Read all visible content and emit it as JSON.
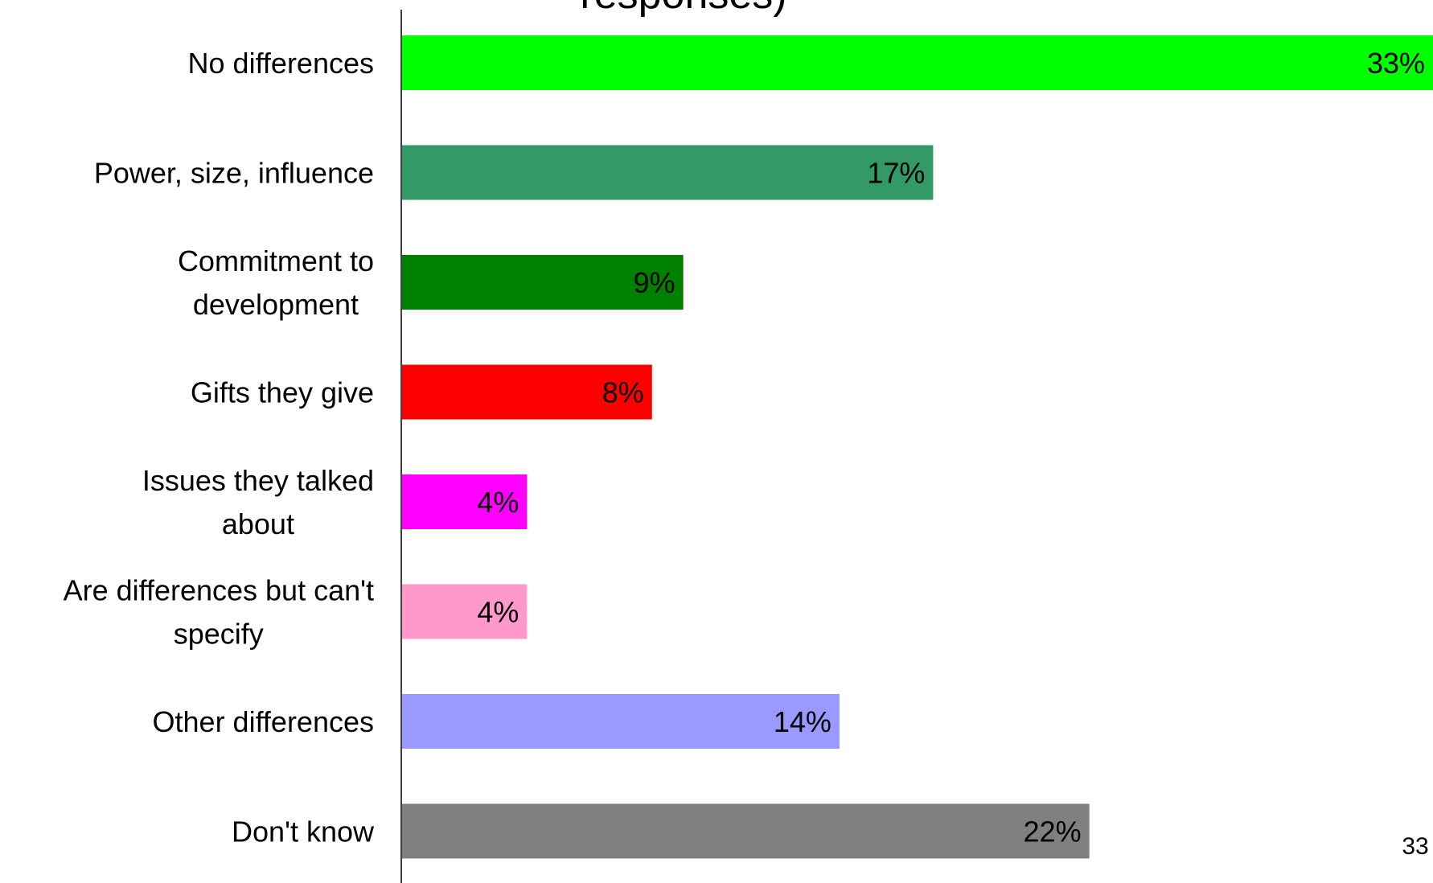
{
  "title_fragment": "responses)",
  "page_number": "33",
  "chart_data": {
    "type": "bar",
    "orientation": "horizontal",
    "categories": [
      "No differences",
      "Power, size, influence",
      "Commitment to development",
      "Gifts they give",
      "Issues they talked about",
      "Are differences but can't specify",
      "Other differences",
      "Don't know"
    ],
    "category_lines": [
      [
        "No differences"
      ],
      [
        "Power, size, influence"
      ],
      [
        "Commitment to",
        "development"
      ],
      [
        "Gifts they give"
      ],
      [
        "Issues they talked",
        "about"
      ],
      [
        "Are differences but can't",
        "specify"
      ],
      [
        "Other differences"
      ],
      [
        "Don't know"
      ]
    ],
    "values": [
      33,
      17,
      9,
      8,
      4,
      4,
      14,
      22
    ],
    "value_labels": [
      "33%",
      "17%",
      "9%",
      "8%",
      "4%",
      "4%",
      "14%",
      "22%"
    ],
    "colors": [
      "#00ff00",
      "#339966",
      "#008000",
      "#ff0000",
      "#ff00ff",
      "#ff99cc",
      "#9999ff",
      "#808080"
    ],
    "xlim": [
      0,
      33
    ],
    "grid": false,
    "legend": "none"
  }
}
